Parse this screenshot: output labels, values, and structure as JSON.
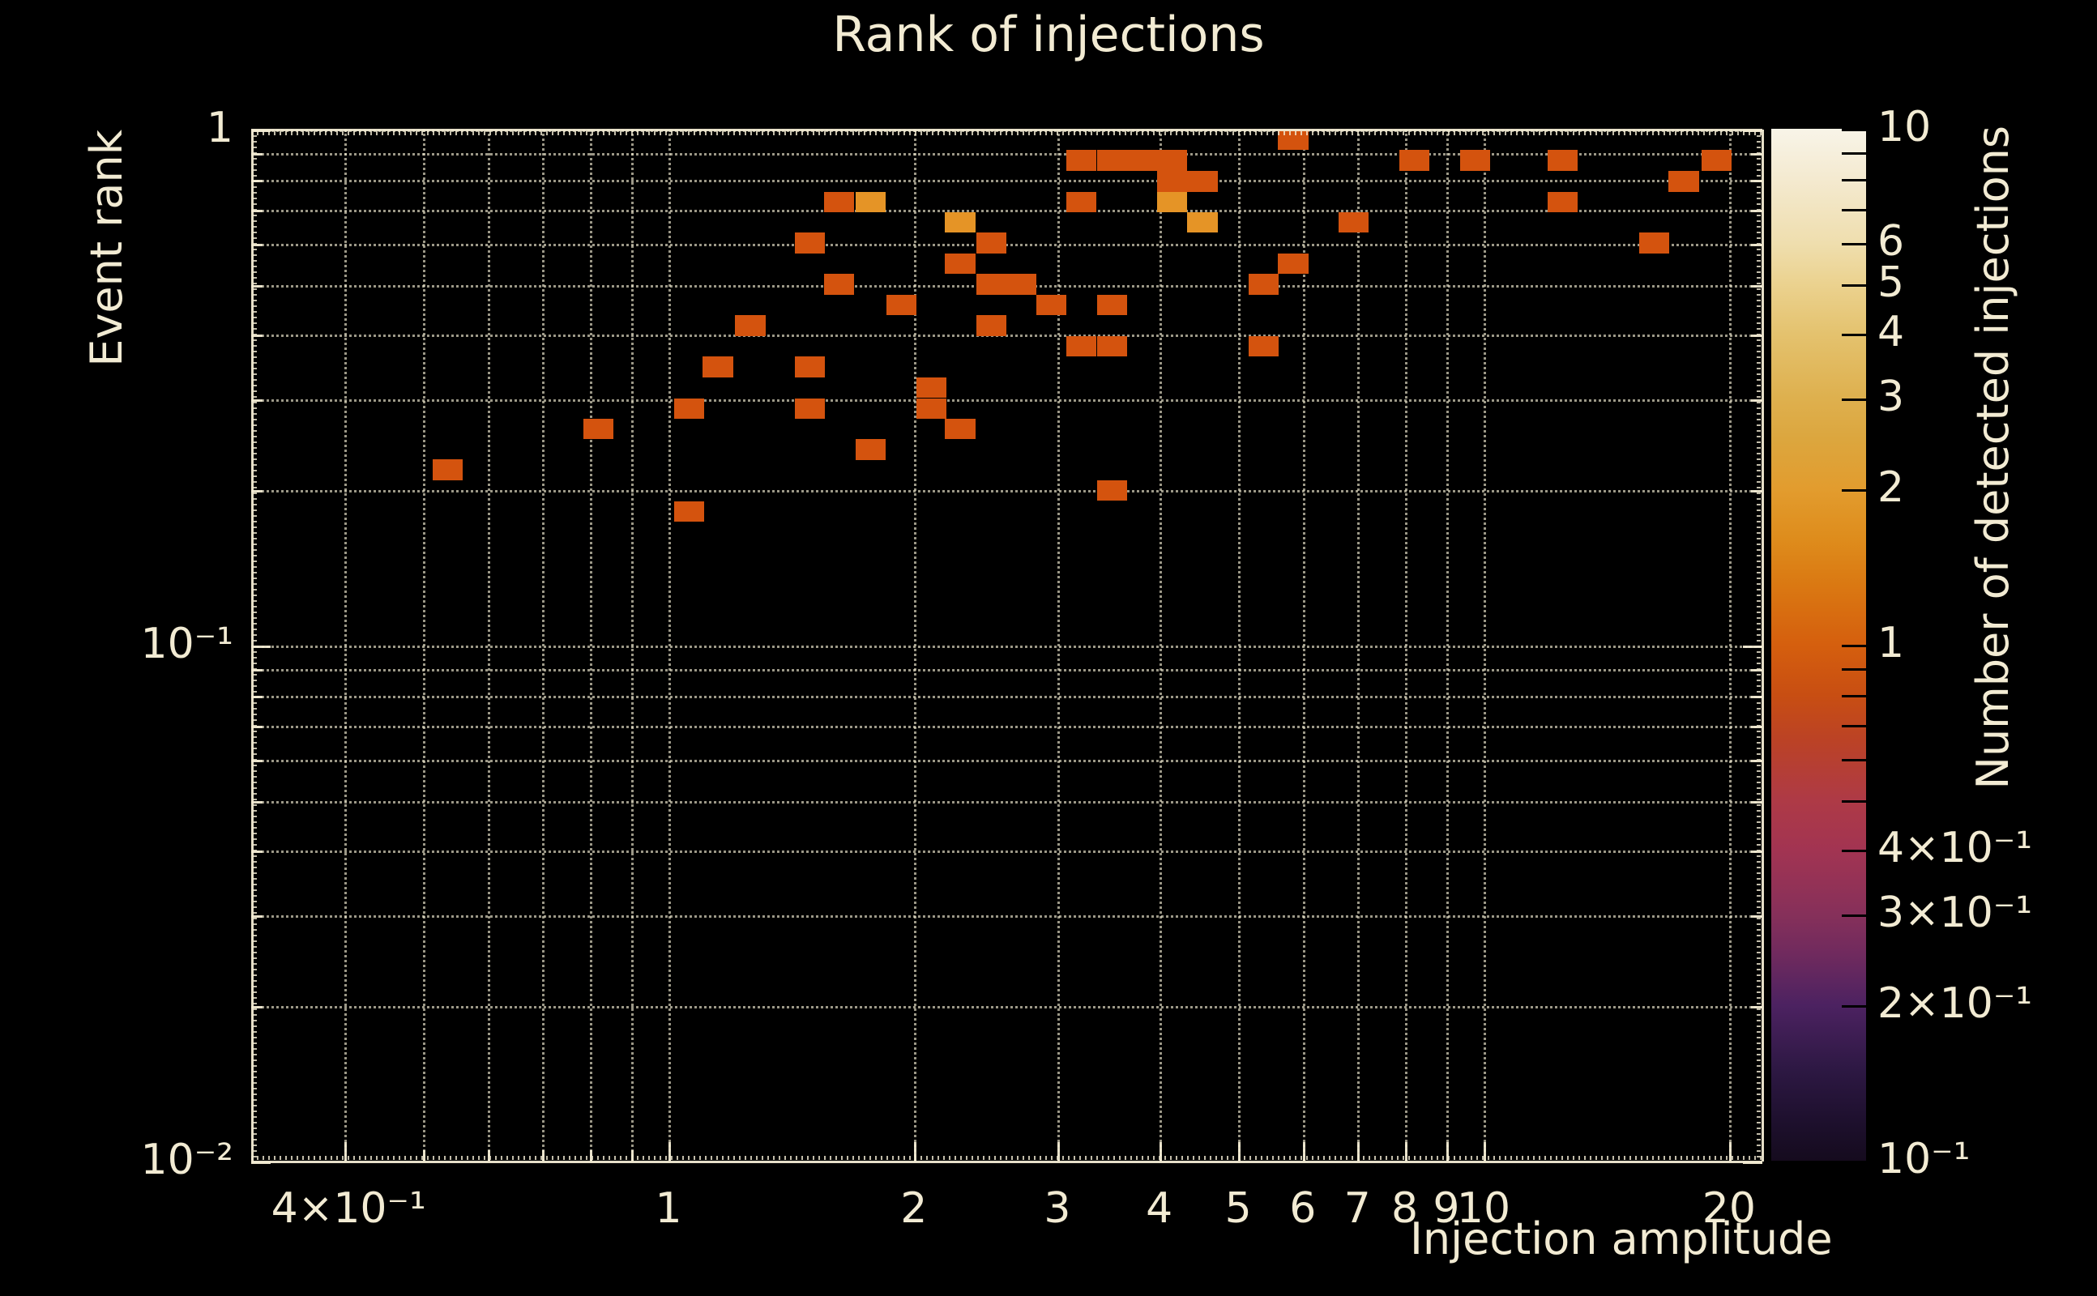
{
  "page": {
    "background": "#000000"
  },
  "colors": {
    "background": "#000000",
    "foreground": "#f2ebd3",
    "grid": "#f0e9d0",
    "cell_count_1": "#d4530e",
    "cell_count_2": "#e59426"
  },
  "chart_data": {
    "type": "heatmap",
    "title": "Rank of injections",
    "xlabel": "Injection amplitude",
    "ylabel": "Event rank",
    "zlabel": "Number of detected injections",
    "xscale": "log",
    "yscale": "log",
    "zscale": "log",
    "xlim": [
      0.31,
      21.9
    ],
    "ylim": [
      0.01,
      1.0
    ],
    "zlim": [
      0.1,
      10
    ],
    "grid": true,
    "legend_position": "right-colorbar",
    "bins": {
      "x_per_decade": 27,
      "y_per_decade": 25
    },
    "x_gridlines": [
      0.4,
      0.5,
      0.6,
      0.7,
      0.8,
      0.9,
      1,
      2,
      3,
      4,
      5,
      6,
      7,
      8,
      9,
      10,
      20
    ],
    "y_gridlines": [
      1,
      0.9,
      0.8,
      0.7,
      0.6,
      0.5,
      0.4,
      0.3,
      0.2,
      0.1,
      0.09,
      0.08,
      0.07,
      0.06,
      0.05,
      0.04,
      0.03,
      0.02
    ],
    "x_ticks": [
      {
        "v": 0.4,
        "label": "4×10⁻¹"
      },
      {
        "v": 0.5
      },
      {
        "v": 0.6
      },
      {
        "v": 0.7
      },
      {
        "v": 0.8
      },
      {
        "v": 0.9
      },
      {
        "v": 1,
        "label": "1"
      },
      {
        "v": 2,
        "label": "2"
      },
      {
        "v": 3,
        "label": "3"
      },
      {
        "v": 4,
        "label": "4"
      },
      {
        "v": 5,
        "label": "5"
      },
      {
        "v": 6,
        "label": "6"
      },
      {
        "v": 7,
        "label": "7"
      },
      {
        "v": 8,
        "label": "8"
      },
      {
        "v": 9,
        "label": "9"
      },
      {
        "v": 10,
        "label": "10"
      },
      {
        "v": 20,
        "label": "20"
      }
    ],
    "y_ticks": [
      {
        "v": 1,
        "label": "1"
      },
      {
        "v": 0.9
      },
      {
        "v": 0.8
      },
      {
        "v": 0.7
      },
      {
        "v": 0.6
      },
      {
        "v": 0.5
      },
      {
        "v": 0.4
      },
      {
        "v": 0.3
      },
      {
        "v": 0.2
      },
      {
        "v": 0.1,
        "label": "10⁻¹"
      },
      {
        "v": 0.09
      },
      {
        "v": 0.08
      },
      {
        "v": 0.07
      },
      {
        "v": 0.06
      },
      {
        "v": 0.05
      },
      {
        "v": 0.04
      },
      {
        "v": 0.03
      },
      {
        "v": 0.02
      },
      {
        "v": 0.01,
        "label": "10⁻²"
      }
    ],
    "colorbar": {
      "ticks": [
        {
          "v": 10,
          "label": "10"
        },
        {
          "v": 9
        },
        {
          "v": 8
        },
        {
          "v": 7
        },
        {
          "v": 6,
          "label": "6"
        },
        {
          "v": 5,
          "label": "5"
        },
        {
          "v": 4,
          "label": "4"
        },
        {
          "v": 3,
          "label": "3"
        },
        {
          "v": 2,
          "label": "2"
        },
        {
          "v": 1,
          "label": "1"
        },
        {
          "v": 0.9
        },
        {
          "v": 0.8
        },
        {
          "v": 0.7
        },
        {
          "v": 0.6
        },
        {
          "v": 0.5
        },
        {
          "v": 0.4,
          "label": "4×10⁻¹"
        },
        {
          "v": 0.3,
          "label": "3×10⁻¹"
        },
        {
          "v": 0.2,
          "label": "2×10⁻¹"
        },
        {
          "v": 0.1,
          "label": "10⁻¹"
        }
      ],
      "stops": [
        {
          "v": 10,
          "color": "#f8f4e8"
        },
        {
          "v": 8,
          "color": "#f4ead0"
        },
        {
          "v": 6,
          "color": "#efdeae"
        },
        {
          "v": 5,
          "color": "#ebd28f"
        },
        {
          "v": 4,
          "color": "#e4c26e"
        },
        {
          "v": 3,
          "color": "#deb04e"
        },
        {
          "v": 2.5,
          "color": "#dca63e"
        },
        {
          "v": 2,
          "color": "#e29c2e"
        },
        {
          "v": 1.6,
          "color": "#de8c1c"
        },
        {
          "v": 1.3,
          "color": "#da7812"
        },
        {
          "v": 1,
          "color": "#d55f0e"
        },
        {
          "v": 0.8,
          "color": "#c84e12"
        },
        {
          "v": 0.65,
          "color": "#bb4226"
        },
        {
          "v": 0.5,
          "color": "#ae3a46"
        },
        {
          "v": 0.4,
          "color": "#a23452"
        },
        {
          "v": 0.3,
          "color": "#86305a"
        },
        {
          "v": 0.25,
          "color": "#6f2a5e"
        },
        {
          "v": 0.2,
          "color": "#4c2261"
        },
        {
          "v": 0.15,
          "color": "#2d1843"
        },
        {
          "v": 0.12,
          "color": "#1e102e"
        },
        {
          "v": 0.1,
          "color": "#150b1e"
        }
      ]
    },
    "cells": [
      {
        "a": 5.84,
        "r": 0.955,
        "n": 1
      },
      {
        "a": 3.21,
        "r": 0.871,
        "n": 1
      },
      {
        "a": 3.5,
        "r": 0.871,
        "n": 1
      },
      {
        "a": 3.81,
        "r": 0.871,
        "n": 1
      },
      {
        "a": 4.15,
        "r": 0.871,
        "n": 1
      },
      {
        "a": 8.22,
        "r": 0.871,
        "n": 1
      },
      {
        "a": 9.76,
        "r": 0.871,
        "n": 1
      },
      {
        "a": 12.5,
        "r": 0.871,
        "n": 1
      },
      {
        "a": 19.3,
        "r": 0.871,
        "n": 1
      },
      {
        "a": 4.15,
        "r": 0.794,
        "n": 1
      },
      {
        "a": 4.52,
        "r": 0.794,
        "n": 1
      },
      {
        "a": 17.6,
        "r": 0.794,
        "n": 1
      },
      {
        "a": 1.62,
        "r": 0.724,
        "n": 1
      },
      {
        "a": 1.77,
        "r": 0.724,
        "n": 2
      },
      {
        "a": 3.21,
        "r": 0.724,
        "n": 1
      },
      {
        "a": 4.15,
        "r": 0.724,
        "n": 2
      },
      {
        "a": 12.5,
        "r": 0.724,
        "n": 1
      },
      {
        "a": 2.28,
        "r": 0.661,
        "n": 2
      },
      {
        "a": 4.52,
        "r": 0.661,
        "n": 2
      },
      {
        "a": 6.93,
        "r": 0.661,
        "n": 1
      },
      {
        "a": 1.49,
        "r": 0.603,
        "n": 1
      },
      {
        "a": 2.49,
        "r": 0.603,
        "n": 1
      },
      {
        "a": 16.2,
        "r": 0.603,
        "n": 1
      },
      {
        "a": 2.28,
        "r": 0.55,
        "n": 1
      },
      {
        "a": 5.84,
        "r": 0.55,
        "n": 1
      },
      {
        "a": 1.62,
        "r": 0.501,
        "n": 1
      },
      {
        "a": 2.49,
        "r": 0.501,
        "n": 1
      },
      {
        "a": 2.71,
        "r": 0.501,
        "n": 1
      },
      {
        "a": 5.37,
        "r": 0.501,
        "n": 1
      },
      {
        "a": 1.93,
        "r": 0.457,
        "n": 1
      },
      {
        "a": 2.95,
        "r": 0.457,
        "n": 1
      },
      {
        "a": 3.5,
        "r": 0.457,
        "n": 1
      },
      {
        "a": 1.26,
        "r": 0.417,
        "n": 1
      },
      {
        "a": 2.49,
        "r": 0.417,
        "n": 1
      },
      {
        "a": 3.21,
        "r": 0.38,
        "n": 1
      },
      {
        "a": 3.5,
        "r": 0.38,
        "n": 1
      },
      {
        "a": 5.37,
        "r": 0.38,
        "n": 1
      },
      {
        "a": 1.15,
        "r": 0.347,
        "n": 1
      },
      {
        "a": 1.49,
        "r": 0.347,
        "n": 1
      },
      {
        "a": 2.1,
        "r": 0.316,
        "n": 1
      },
      {
        "a": 1.06,
        "r": 0.288,
        "n": 1
      },
      {
        "a": 1.49,
        "r": 0.288,
        "n": 1
      },
      {
        "a": 2.1,
        "r": 0.288,
        "n": 1
      },
      {
        "a": 0.821,
        "r": 0.263,
        "n": 1
      },
      {
        "a": 2.28,
        "r": 0.263,
        "n": 1
      },
      {
        "a": 1.77,
        "r": 0.24,
        "n": 1
      },
      {
        "a": 0.536,
        "r": 0.219,
        "n": 1
      },
      {
        "a": 3.5,
        "r": 0.2,
        "n": 1
      },
      {
        "a": 1.06,
        "r": 0.182,
        "n": 1
      }
    ]
  }
}
